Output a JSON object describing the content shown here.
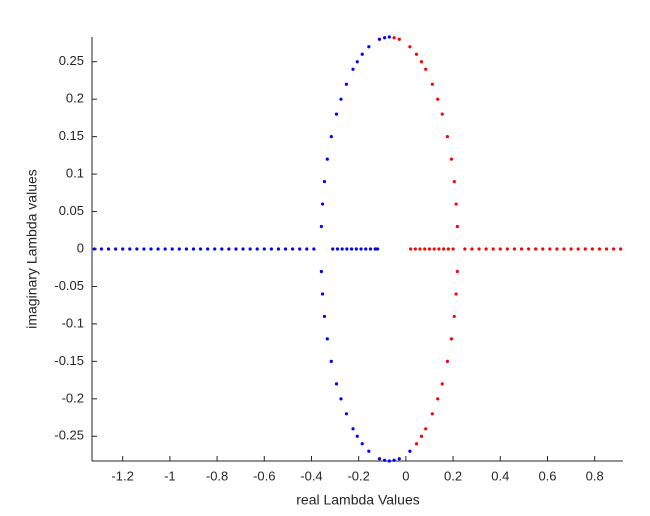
{
  "chart_data": {
    "type": "scatter",
    "xlabel": "real Lambda Values",
    "ylabel": "imaginary Lambda values",
    "xlim": [
      -1.33,
      0.92
    ],
    "ylim": [
      -0.283,
      0.283
    ],
    "xticks": [
      -1.2,
      -1,
      -0.8,
      -0.6,
      -0.4,
      -0.2,
      0,
      0.2,
      0.4,
      0.6,
      0.8
    ],
    "yticks": [
      -0.25,
      -0.2,
      -0.15,
      -0.1,
      -0.05,
      0,
      0.05,
      0.1,
      0.15,
      0.2,
      0.25
    ],
    "series": [
      {
        "color": "#0000ff",
        "x": [
          -0.112,
          -0.157,
          -0.185,
          -0.206,
          -0.224,
          -0.252,
          -0.275,
          -0.294,
          -0.316,
          -0.333,
          -0.345,
          -0.353,
          -0.358,
          -0.112,
          -0.157,
          -0.185,
          -0.206,
          -0.224,
          -0.252,
          -0.275,
          -0.294,
          -0.316,
          -0.333,
          -0.345,
          -0.353,
          -0.358,
          -0.07,
          -0.09,
          -0.07,
          -0.09,
          -0.05,
          -0.028,
          0.017
        ],
        "y": [
          0.28,
          0.27,
          0.26,
          0.25,
          0.24,
          0.22,
          0.2,
          0.18,
          0.15,
          0.12,
          0.09,
          0.06,
          0.03,
          -0.28,
          -0.27,
          -0.26,
          -0.25,
          -0.24,
          -0.22,
          -0.2,
          -0.18,
          -0.15,
          -0.12,
          -0.09,
          -0.06,
          -0.03,
          0.283,
          0.282,
          -0.283,
          -0.282,
          -0.282,
          -0.28,
          -0.27
        ]
      },
      {
        "color": "#0000ff",
        "x": [
          -1.32,
          -1.29,
          -1.26,
          -1.23,
          -1.2,
          -1.17,
          -1.14,
          -1.11,
          -1.08,
          -1.05,
          -1.02,
          -0.99,
          -0.96,
          -0.93,
          -0.9,
          -0.87,
          -0.84,
          -0.81,
          -0.78,
          -0.75,
          -0.72,
          -0.69,
          -0.66,
          -0.63,
          -0.6,
          -0.57,
          -0.54,
          -0.51,
          -0.48,
          -0.45,
          -0.42,
          -0.39,
          -0.31,
          -0.29,
          -0.27,
          -0.25,
          -0.23,
          -0.21,
          -0.19,
          -0.17,
          -0.15,
          -0.13,
          -0.12
        ],
        "y": [
          0,
          0,
          0,
          0,
          0,
          0,
          0,
          0,
          0,
          0,
          0,
          0,
          0,
          0,
          0,
          0,
          0,
          0,
          0,
          0,
          0,
          0,
          0,
          0,
          0,
          0,
          0,
          0,
          0,
          0,
          0,
          0,
          0,
          0,
          0,
          0,
          0,
          0,
          0,
          0,
          0,
          0,
          0
        ]
      },
      {
        "color": "#ff0000",
        "x": [
          -0.028,
          0.017,
          0.045,
          0.066,
          0.084,
          0.112,
          0.135,
          0.154,
          0.176,
          0.193,
          0.205,
          0.213,
          0.218,
          0.045,
          0.066,
          0.084,
          0.112,
          0.135,
          0.154,
          0.176,
          0.193,
          0.205,
          0.213,
          0.218,
          -0.05
        ],
        "y": [
          0.28,
          0.27,
          0.26,
          0.25,
          0.24,
          0.22,
          0.2,
          0.18,
          0.15,
          0.12,
          0.09,
          0.06,
          0.03,
          -0.26,
          -0.25,
          -0.24,
          -0.22,
          -0.2,
          -0.18,
          -0.15,
          -0.12,
          -0.09,
          -0.06,
          -0.03,
          0.282
        ]
      },
      {
        "color": "#ff0000",
        "x": [
          0.02,
          0.04,
          0.06,
          0.08,
          0.1,
          0.12,
          0.14,
          0.16,
          0.18,
          0.2,
          0.25,
          0.28,
          0.31,
          0.34,
          0.37,
          0.4,
          0.43,
          0.46,
          0.49,
          0.52,
          0.55,
          0.58,
          0.61,
          0.64,
          0.67,
          0.7,
          0.73,
          0.76,
          0.79,
          0.82,
          0.85,
          0.88,
          0.91
        ],
        "y": [
          0,
          0,
          0,
          0,
          0,
          0,
          0,
          0,
          0,
          0,
          0,
          0,
          0,
          0,
          0,
          0,
          0,
          0,
          0,
          0,
          0,
          0,
          0,
          0,
          0,
          0,
          0,
          0,
          0,
          0,
          0,
          0,
          0
        ]
      }
    ]
  }
}
